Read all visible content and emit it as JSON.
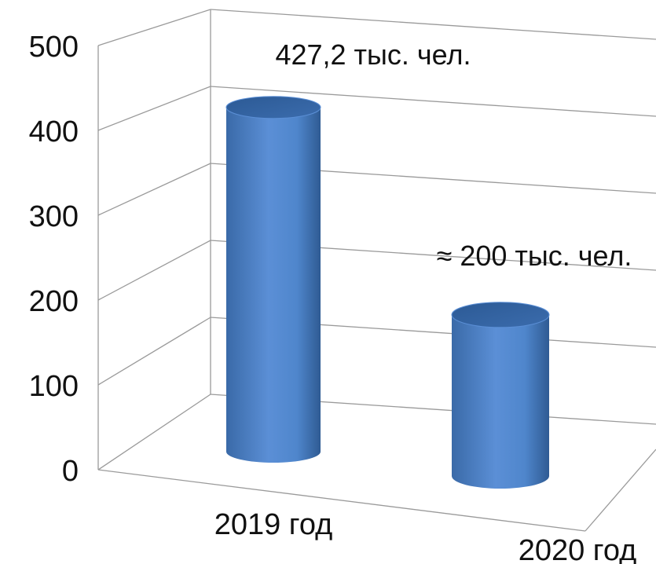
{
  "chart_data": {
    "type": "bar",
    "style": "3d-cylinder",
    "categories": [
      "2019 год",
      "2020 год"
    ],
    "values": [
      427.2,
      200
    ],
    "data_labels": [
      "427,2 тыс. чел.",
      "≈ 200 тыс. чел."
    ],
    "y_ticks": [
      "0",
      "100",
      "200",
      "300",
      "400",
      "500"
    ],
    "ylim": [
      0,
      500
    ],
    "grid": true,
    "legend": "none",
    "bar_color": "#4f81bd"
  }
}
